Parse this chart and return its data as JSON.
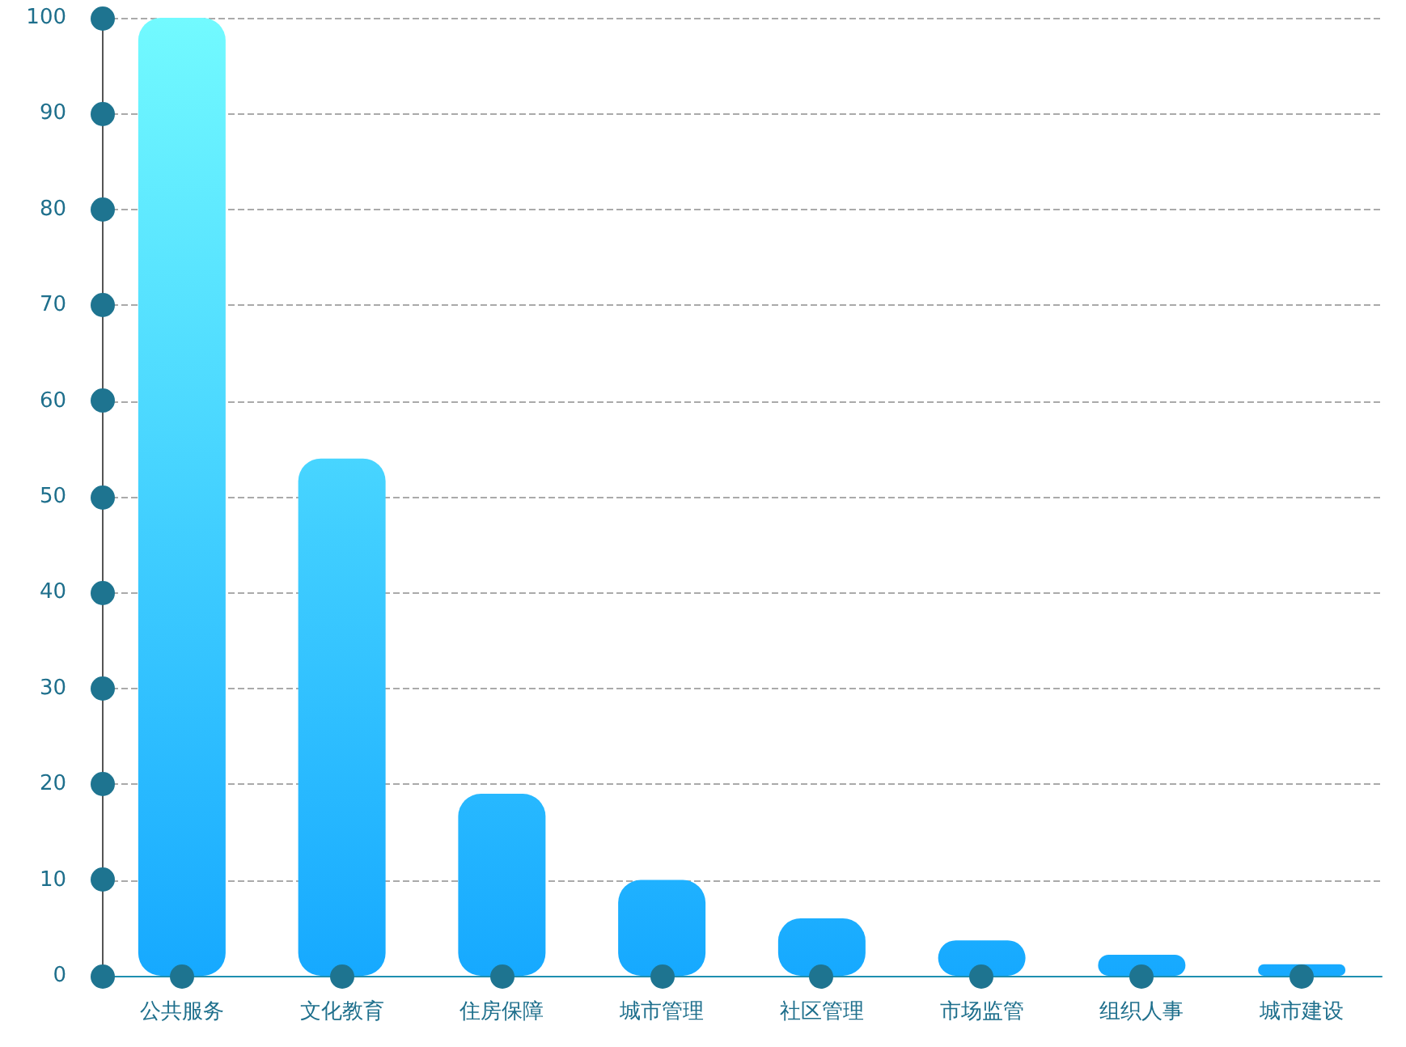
{
  "chart_data": {
    "type": "bar",
    "categories": [
      "公共服务",
      "文化教育",
      "住房保障",
      "城市管理",
      "社区管理",
      "市场监管",
      "组织人事",
      "城市建设"
    ],
    "values": [
      100,
      54,
      19,
      10,
      6,
      3.7,
      2.2,
      1.2
    ],
    "color": "#16a9ff",
    "ylim": [
      0,
      100
    ],
    "yticks": [
      0,
      10,
      20,
      30,
      40,
      50,
      60,
      70,
      80,
      90,
      100
    ],
    "grid": "y"
  }
}
